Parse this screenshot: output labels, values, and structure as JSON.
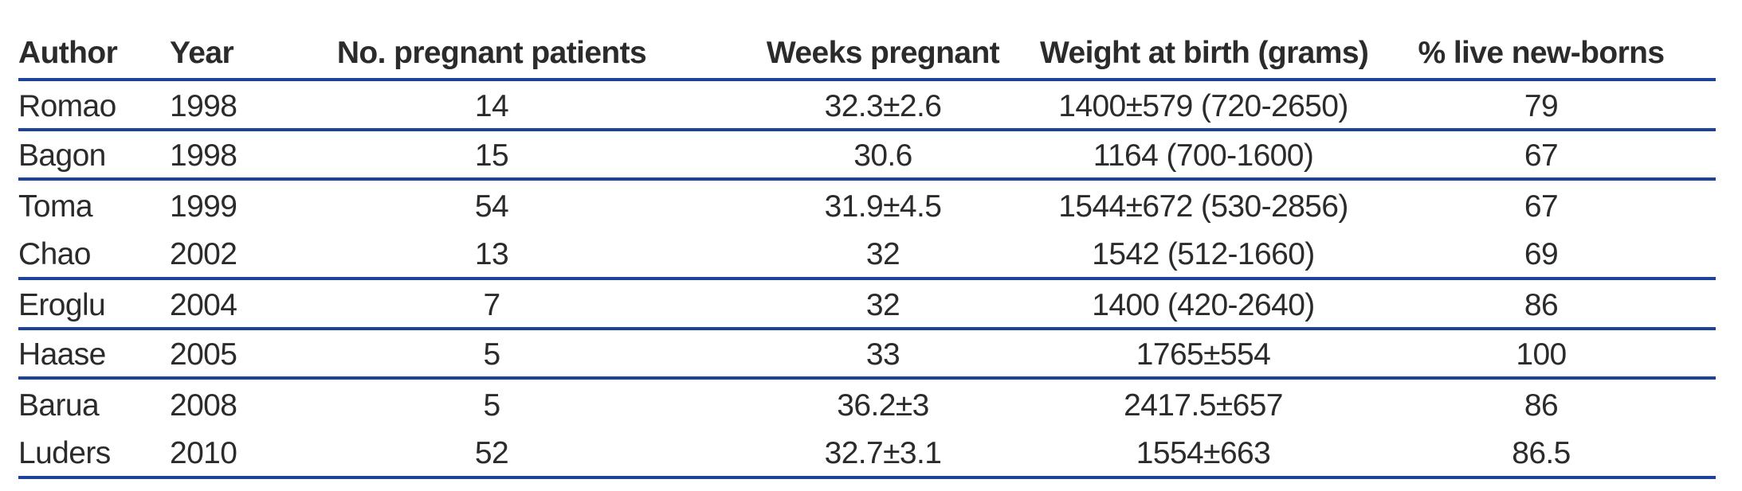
{
  "colors": {
    "rule_blue": "#1c429b",
    "text": "#2b2b2b",
    "background": "#ffffff"
  },
  "table": {
    "name": "pregnancy-outcomes-by-author",
    "columns": [
      {
        "label": "Author",
        "align": "left"
      },
      {
        "label": "Year",
        "align": "left"
      },
      {
        "label": "No. pregnant patients",
        "align": "center"
      },
      {
        "label": "Weeks pregnant",
        "align": "center"
      },
      {
        "label": "Weight at birth (grams)",
        "align": "center"
      },
      {
        "label": "% live new-borns",
        "align": "center"
      }
    ],
    "rows": [
      {
        "author": "Romao",
        "year": "1998",
        "patients": "14",
        "weeks": "32.3±2.6",
        "weight": "1400±579 (720-2650)",
        "live": "79",
        "divider": true
      },
      {
        "author": "Bagon",
        "year": "1998",
        "patients": "15",
        "weeks": "30.6",
        "weight": "1164 (700-1600)",
        "live": "67",
        "divider": true
      },
      {
        "author": "Toma",
        "year": "1999",
        "patients": "54",
        "weeks": "31.9±4.5",
        "weight": "1544±672 (530-2856)",
        "live": "67",
        "divider": false
      },
      {
        "author": "Chao",
        "year": "2002",
        "patients": "13",
        "weeks": "32",
        "weight": "1542 (512-1660)",
        "live": "69",
        "divider": true
      },
      {
        "author": "Eroglu",
        "year": "2004",
        "patients": "7",
        "weeks": "32",
        "weight": "1400 (420-2640)",
        "live": "86",
        "divider": true
      },
      {
        "author": "Haase",
        "year": "2005",
        "patients": "5",
        "weeks": "33",
        "weight": "1765±554",
        "live": "100",
        "divider": true
      },
      {
        "author": "Barua",
        "year": "2008",
        "patients": "5",
        "weeks": "36.2±3",
        "weight": "2417.5±657",
        "live": "86",
        "divider": false
      },
      {
        "author": "Luders",
        "year": "2010",
        "patients": "52",
        "weeks": "32.7±3.1",
        "weight": "1554±663",
        "live": "86.5",
        "divider": true
      }
    ]
  }
}
